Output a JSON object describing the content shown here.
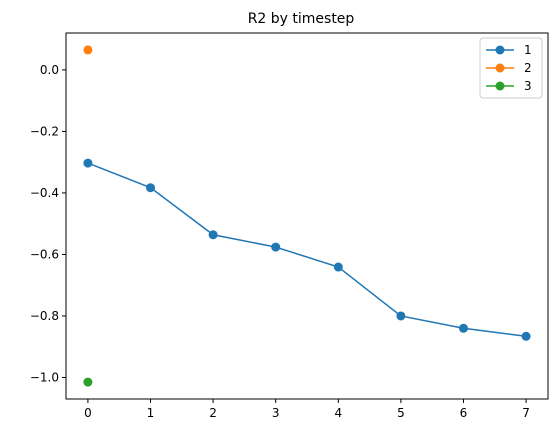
{
  "chart_data": {
    "type": "line",
    "title": "R2 by timestep",
    "xlabel": "",
    "ylabel": "",
    "xlim": [
      -0.35,
      7.35
    ],
    "ylim": [
      -1.07,
      0.12
    ],
    "x_ticks": [
      0,
      1,
      2,
      3,
      4,
      5,
      6,
      7
    ],
    "x_tick_labels": [
      "0",
      "1",
      "2",
      "3",
      "4",
      "5",
      "6",
      "7"
    ],
    "y_ticks": [
      0.0,
      -0.2,
      -0.4,
      -0.6,
      -0.8,
      -1.0
    ],
    "y_tick_labels": [
      "0.0",
      "−0.2",
      "−0.4",
      "−0.6",
      "−0.8",
      "−1.0"
    ],
    "grid": false,
    "legend_position": "top-right",
    "series": [
      {
        "name": "1",
        "color": "#1f77b4",
        "x": [
          0,
          1,
          2,
          3,
          4,
          5,
          6,
          7
        ],
        "y": [
          -0.303,
          -0.383,
          -0.536,
          -0.576,
          -0.641,
          -0.8,
          -0.84,
          -0.866
        ]
      },
      {
        "name": "2",
        "color": "#ff7f0e",
        "x": [
          0
        ],
        "y": [
          0.065
        ]
      },
      {
        "name": "3",
        "color": "#2ca02c",
        "x": [
          0
        ],
        "y": [
          -1.015
        ]
      }
    ]
  }
}
